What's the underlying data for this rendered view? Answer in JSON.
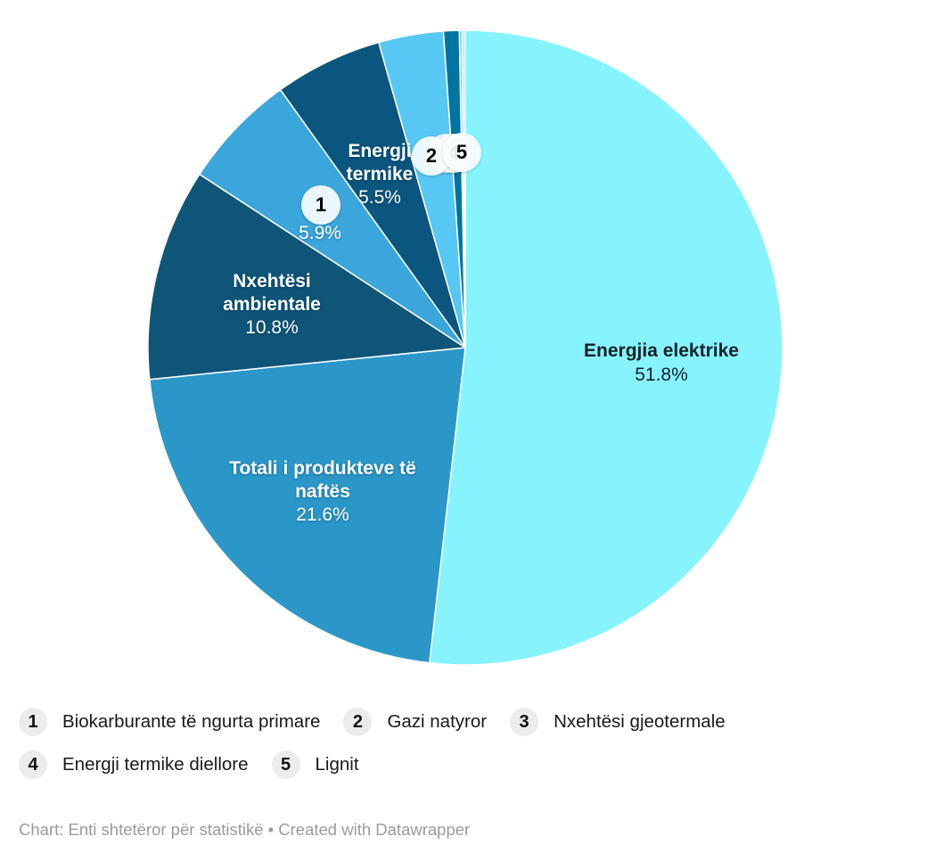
{
  "chart_data": {
    "type": "pie",
    "start_angle_deg": 0,
    "direction": "clockwise",
    "label_style": "inside",
    "legend_position": "bottom",
    "background": "#ffffff",
    "separator_color": "#ffffff",
    "series": [
      {
        "label": "Energjia elektrike",
        "value": 51.8,
        "display": "51.8%",
        "color": "#87f3fd"
      },
      {
        "label": "Totali i produkteve të naftës",
        "value": 21.6,
        "display": "21.6%",
        "color": "#2b97c9"
      },
      {
        "label": "Nxehtësi ambientale",
        "value": 10.8,
        "display": "10.8%",
        "color": "#0e5578"
      },
      {
        "label": "Biokarburante të ngurta primare",
        "value": 5.9,
        "display": "5.9%",
        "color": "#3aa6db",
        "marker": "1"
      },
      {
        "label": "Energji termike",
        "value": 5.5,
        "display": "5.5%",
        "color": "#0b567e"
      },
      {
        "label": "Gazi natyror",
        "value": 3.3,
        "color": "#57c7f4",
        "marker": "2"
      },
      {
        "label": "Nxehtësi gjeotermale",
        "value": 0.8,
        "color": "#0274a0",
        "marker": "3"
      },
      {
        "label": "Energji termike diellore",
        "value": 0.15,
        "color": "#7fd6f2",
        "marker": "4"
      },
      {
        "label": "Lignit",
        "value": 0.15,
        "color": "#abe9fa",
        "marker": "5"
      }
    ]
  },
  "legend": {
    "circle_color": "#ececec",
    "text_color": "#191919"
  },
  "footer": {
    "text": "Chart: Enti shtetëror për statistikë • Created with Datawrapper"
  }
}
